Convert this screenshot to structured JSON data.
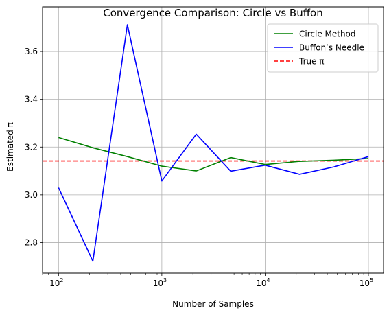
{
  "chart_data": {
    "type": "line",
    "title": "Convergence Comparison: Circle vs Buffon",
    "xlabel": "Number of Samples",
    "ylabel": "Estimated π",
    "xscale": "log",
    "xlim": [
      70,
      140000
    ],
    "ylim": [
      2.672,
      3.787
    ],
    "grid": true,
    "legend_position": "top-right",
    "x": [
      100,
      215,
      464,
      1000,
      2154,
      4642,
      10000,
      21544,
      46416,
      100000
    ],
    "x_ticks": [
      {
        "value": 100,
        "base": "10",
        "exp": "2"
      },
      {
        "value": 1000,
        "base": "10",
        "exp": "3"
      },
      {
        "value": 10000,
        "base": "10",
        "exp": "4"
      },
      {
        "value": 100000,
        "base": "10",
        "exp": "5"
      }
    ],
    "y_ticks": [
      "2.8",
      "3.0",
      "3.2",
      "3.4",
      "3.6"
    ],
    "series": [
      {
        "name": "Circle Method",
        "color": "#008000",
        "style": "solid",
        "values": [
          3.24,
          3.197,
          3.16,
          3.12,
          3.1,
          3.156,
          3.127,
          3.14,
          3.145,
          3.152
        ]
      },
      {
        "name": "Buffon’s Needle",
        "color": "#0000ff",
        "style": "solid",
        "values": [
          3.03,
          2.722,
          3.712,
          3.058,
          3.254,
          3.099,
          3.124,
          3.086,
          3.117,
          3.16
        ]
      }
    ],
    "reference_lines": [
      {
        "name": "True π",
        "y": 3.14159,
        "color": "#ff0000",
        "style": "dashed"
      }
    ]
  }
}
